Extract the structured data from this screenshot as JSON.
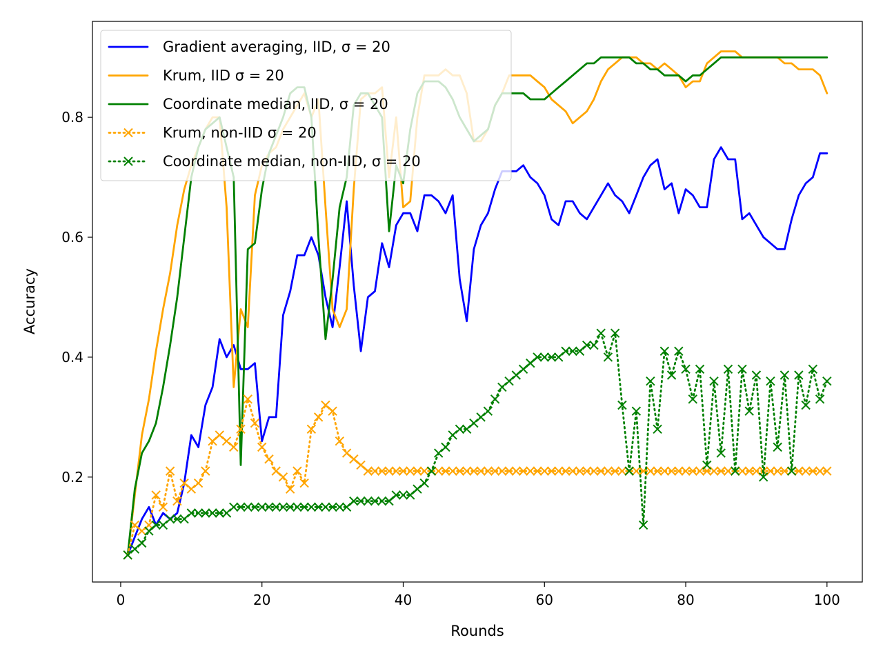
{
  "chart_data": {
    "type": "line",
    "title": "",
    "xlabel": "Rounds",
    "ylabel": "Accuracy",
    "xlim": [
      -4,
      105
    ],
    "ylim": [
      0.025,
      0.96
    ],
    "xticks": [
      0,
      20,
      40,
      60,
      80,
      100
    ],
    "xtick_labels": [
      "0",
      "20",
      "40",
      "60",
      "80",
      "100"
    ],
    "yticks": [
      0.2,
      0.4,
      0.6,
      0.8
    ],
    "ytick_labels": [
      "0.2",
      "0.4",
      "0.6",
      "0.8"
    ],
    "grid": false,
    "legend_position": "top-left",
    "x": [
      1,
      2,
      3,
      4,
      5,
      6,
      7,
      8,
      9,
      10,
      11,
      12,
      13,
      14,
      15,
      16,
      17,
      18,
      19,
      20,
      21,
      22,
      23,
      24,
      25,
      26,
      27,
      28,
      29,
      30,
      31,
      32,
      33,
      34,
      35,
      36,
      37,
      38,
      39,
      40,
      41,
      42,
      43,
      44,
      45,
      46,
      47,
      48,
      49,
      50,
      51,
      52,
      53,
      54,
      55,
      56,
      57,
      58,
      59,
      60,
      61,
      62,
      63,
      64,
      65,
      66,
      67,
      68,
      69,
      70,
      71,
      72,
      73,
      74,
      75,
      76,
      77,
      78,
      79,
      80,
      81,
      82,
      83,
      84,
      85,
      86,
      87,
      88,
      89,
      90,
      91,
      92,
      93,
      94,
      95,
      96,
      97,
      98,
      99,
      100
    ],
    "series": [
      {
        "name": "Gradient averaging, IID, σ = 20",
        "color": "#0000ff",
        "style": "solid",
        "marker": "none",
        "values": [
          0.07,
          0.1,
          0.13,
          0.15,
          0.12,
          0.14,
          0.13,
          0.14,
          0.19,
          0.27,
          0.25,
          0.32,
          0.35,
          0.43,
          0.4,
          0.42,
          0.38,
          0.38,
          0.39,
          0.26,
          0.3,
          0.3,
          0.47,
          0.51,
          0.57,
          0.57,
          0.6,
          0.57,
          0.5,
          0.45,
          0.55,
          0.66,
          0.52,
          0.41,
          0.5,
          0.51,
          0.59,
          0.55,
          0.62,
          0.64,
          0.64,
          0.61,
          0.67,
          0.67,
          0.66,
          0.64,
          0.67,
          0.53,
          0.46,
          0.58,
          0.62,
          0.64,
          0.68,
          0.71,
          0.71,
          0.71,
          0.72,
          0.7,
          0.69,
          0.67,
          0.63,
          0.62,
          0.66,
          0.66,
          0.64,
          0.63,
          0.65,
          0.67,
          0.69,
          0.67,
          0.66,
          0.64,
          0.67,
          0.7,
          0.72,
          0.73,
          0.68,
          0.69,
          0.64,
          0.68,
          0.67,
          0.65,
          0.65,
          0.73,
          0.75,
          0.73,
          0.73,
          0.63,
          0.64,
          0.62,
          0.6,
          0.59,
          0.58,
          0.58,
          0.63,
          0.67,
          0.69,
          0.7,
          0.74,
          0.74
        ]
      },
      {
        "name": "Krum, IID σ = 20",
        "color": "#ffa500",
        "style": "solid",
        "marker": "none",
        "values": [
          0.07,
          0.17,
          0.27,
          0.33,
          0.41,
          0.48,
          0.54,
          0.62,
          0.68,
          0.72,
          0.75,
          0.78,
          0.8,
          0.8,
          0.65,
          0.35,
          0.48,
          0.45,
          0.67,
          0.72,
          0.74,
          0.75,
          0.78,
          0.8,
          0.82,
          0.84,
          0.8,
          0.83,
          0.65,
          0.48,
          0.45,
          0.48,
          0.68,
          0.83,
          0.84,
          0.84,
          0.85,
          0.7,
          0.8,
          0.65,
          0.66,
          0.8,
          0.87,
          0.87,
          0.87,
          0.88,
          0.87,
          0.87,
          0.84,
          0.76,
          0.76,
          0.78,
          0.82,
          0.84,
          0.87,
          0.87,
          0.87,
          0.87,
          0.86,
          0.85,
          0.83,
          0.82,
          0.81,
          0.79,
          0.8,
          0.81,
          0.83,
          0.86,
          0.88,
          0.89,
          0.9,
          0.9,
          0.9,
          0.89,
          0.89,
          0.88,
          0.89,
          0.88,
          0.87,
          0.85,
          0.86,
          0.86,
          0.89,
          0.9,
          0.91,
          0.91,
          0.91,
          0.9,
          0.9,
          0.9,
          0.9,
          0.9,
          0.9,
          0.89,
          0.89,
          0.88,
          0.88,
          0.88,
          0.87,
          0.84
        ]
      },
      {
        "name": "Coordinate median, IID, σ = 20",
        "color": "#008000",
        "style": "solid",
        "marker": "none",
        "values": [
          0.07,
          0.18,
          0.24,
          0.26,
          0.29,
          0.35,
          0.42,
          0.5,
          0.6,
          0.7,
          0.75,
          0.78,
          0.79,
          0.8,
          0.75,
          0.7,
          0.22,
          0.58,
          0.59,
          0.68,
          0.74,
          0.77,
          0.8,
          0.84,
          0.85,
          0.85,
          0.8,
          0.6,
          0.43,
          0.53,
          0.65,
          0.7,
          0.82,
          0.84,
          0.84,
          0.82,
          0.8,
          0.61,
          0.72,
          0.69,
          0.78,
          0.84,
          0.86,
          0.86,
          0.86,
          0.85,
          0.83,
          0.8,
          0.78,
          0.76,
          0.77,
          0.78,
          0.82,
          0.84,
          0.84,
          0.84,
          0.84,
          0.83,
          0.83,
          0.83,
          0.84,
          0.85,
          0.86,
          0.87,
          0.88,
          0.89,
          0.89,
          0.9,
          0.9,
          0.9,
          0.9,
          0.9,
          0.89,
          0.89,
          0.88,
          0.88,
          0.87,
          0.87,
          0.87,
          0.86,
          0.87,
          0.87,
          0.88,
          0.89,
          0.9,
          0.9,
          0.9,
          0.9,
          0.9,
          0.9,
          0.9,
          0.9,
          0.9,
          0.9,
          0.9,
          0.9,
          0.9,
          0.9,
          0.9,
          0.9
        ]
      },
      {
        "name": "Krum, non-IID σ = 20",
        "color": "#ffa500",
        "style": "dotted",
        "marker": "x",
        "values": [
          0.07,
          0.12,
          0.11,
          0.12,
          0.17,
          0.15,
          0.21,
          0.16,
          0.19,
          0.18,
          0.19,
          0.21,
          0.26,
          0.27,
          0.26,
          0.25,
          0.28,
          0.33,
          0.29,
          0.25,
          0.23,
          0.21,
          0.2,
          0.18,
          0.21,
          0.19,
          0.28,
          0.3,
          0.32,
          0.31,
          0.26,
          0.24,
          0.23,
          0.22,
          0.21,
          0.21,
          0.21,
          0.21,
          0.21,
          0.21,
          0.21,
          0.21,
          0.21,
          0.21,
          0.21,
          0.21,
          0.21,
          0.21,
          0.21,
          0.21,
          0.21,
          0.21,
          0.21,
          0.21,
          0.21,
          0.21,
          0.21,
          0.21,
          0.21,
          0.21,
          0.21,
          0.21,
          0.21,
          0.21,
          0.21,
          0.21,
          0.21,
          0.21,
          0.21,
          0.21,
          0.21,
          0.21,
          0.21,
          0.21,
          0.21,
          0.21,
          0.21,
          0.21,
          0.21,
          0.21,
          0.21,
          0.21,
          0.21,
          0.21,
          0.21,
          0.21,
          0.21,
          0.21,
          0.21,
          0.21,
          0.21,
          0.21,
          0.21,
          0.21,
          0.21,
          0.21,
          0.21,
          0.21,
          0.21,
          0.21
        ]
      },
      {
        "name": "Coordinate median, non-IID, σ = 20",
        "color": "#008000",
        "style": "dotted",
        "marker": "x",
        "values": [
          0.07,
          0.08,
          0.09,
          0.11,
          0.12,
          0.12,
          0.13,
          0.13,
          0.13,
          0.14,
          0.14,
          0.14,
          0.14,
          0.14,
          0.14,
          0.15,
          0.15,
          0.15,
          0.15,
          0.15,
          0.15,
          0.15,
          0.15,
          0.15,
          0.15,
          0.15,
          0.15,
          0.15,
          0.15,
          0.15,
          0.15,
          0.15,
          0.16,
          0.16,
          0.16,
          0.16,
          0.16,
          0.16,
          0.17,
          0.17,
          0.17,
          0.18,
          0.19,
          0.21,
          0.24,
          0.25,
          0.27,
          0.28,
          0.28,
          0.29,
          0.3,
          0.31,
          0.33,
          0.35,
          0.36,
          0.37,
          0.38,
          0.39,
          0.4,
          0.4,
          0.4,
          0.4,
          0.41,
          0.41,
          0.41,
          0.42,
          0.42,
          0.44,
          0.4,
          0.44,
          0.32,
          0.21,
          0.31,
          0.12,
          0.36,
          0.28,
          0.41,
          0.37,
          0.41,
          0.38,
          0.33,
          0.38,
          0.22,
          0.36,
          0.24,
          0.38,
          0.21,
          0.38,
          0.31,
          0.37,
          0.2,
          0.36,
          0.25,
          0.37,
          0.21,
          0.37,
          0.32,
          0.38,
          0.33,
          0.36
        ]
      }
    ]
  }
}
